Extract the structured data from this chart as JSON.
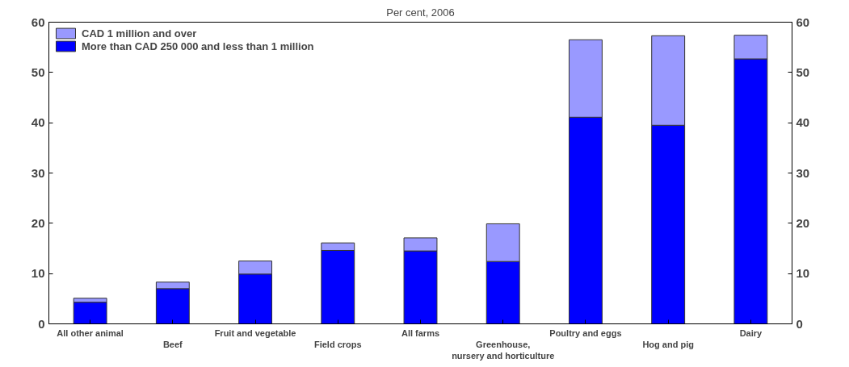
{
  "chart_data": {
    "type": "bar",
    "title": "Per cent, 2006",
    "stacked": true,
    "categories": [
      "All other animal",
      "Beef",
      "Fruit and vegetable",
      "Field crops",
      "All farms",
      "Greenhouse,\nnursery and horticulture",
      "Poultry and eggs",
      "Hog and pig",
      "Dairy"
    ],
    "series": [
      {
        "name": "More than CAD 250 000 and less than 1 million",
        "color": "#0000ff",
        "values": [
          4.3,
          7.0,
          9.9,
          14.6,
          14.5,
          12.4,
          41.1,
          39.5,
          52.7
        ]
      },
      {
        "name": "CAD 1 million and over",
        "color": "#9999ff",
        "values": [
          0.8,
          1.3,
          2.6,
          1.5,
          2.6,
          7.5,
          15.4,
          17.8,
          4.7
        ]
      }
    ],
    "ylim": [
      0,
      60
    ],
    "yticks": [
      0,
      10,
      20,
      30,
      40,
      50,
      60
    ],
    "y2lim": [
      0,
      60
    ],
    "y2ticks": [
      0,
      10,
      20,
      30,
      40,
      50,
      60
    ],
    "grid": false,
    "legend": "top left"
  }
}
